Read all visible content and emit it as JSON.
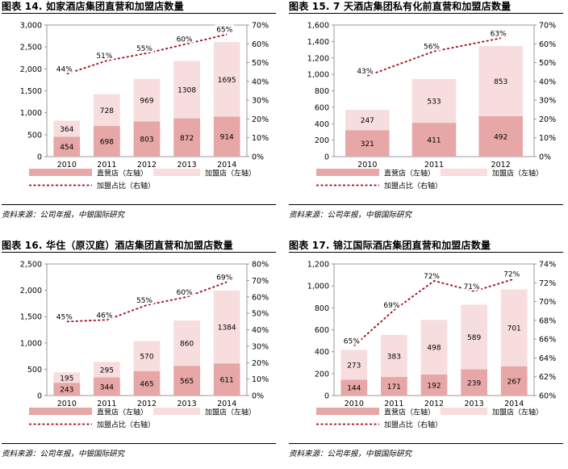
{
  "colors": {
    "direct": "#e6a7a6",
    "franchise": "#f7dddd",
    "ratio_line": "#a00a1c"
  },
  "legend_labels": {
    "direct": "直营店（左轴）",
    "franchise": "加盟店（左轴）",
    "ratio": "加盟占比（右轴）"
  },
  "source_note": "资料来源：公司年报，中银国际研究",
  "chart_data": [
    {
      "type": "bar",
      "title": "图表 14. 如家酒店集团直营和加盟店数量",
      "categories": [
        "2010",
        "2011",
        "2012",
        "2013",
        "2014"
      ],
      "ylim": [
        0,
        3000
      ],
      "left_ticks": [
        "0",
        "500",
        "1,000",
        "1,500",
        "2,000",
        "2,500",
        "3,000"
      ],
      "y2lim": [
        0,
        70
      ],
      "right_ticks": [
        "0%",
        "10%",
        "20%",
        "30%",
        "40%",
        "50%",
        "60%",
        "70%"
      ],
      "series": [
        {
          "name": "直营店（左轴）",
          "values": [
            454,
            698,
            803,
            872,
            914
          ]
        },
        {
          "name": "加盟店（左轴）",
          "values": [
            364,
            728,
            969,
            1308,
            1695
          ]
        }
      ],
      "line": {
        "name": "加盟占比（右轴）",
        "values": [
          44,
          51,
          55,
          60,
          65
        ],
        "labels": [
          "44%",
          "51%",
          "55%",
          "60%",
          "65%"
        ]
      }
    },
    {
      "type": "bar",
      "title": "图表 15. 7 天酒店集团私有化前直营和加盟店数量",
      "categories": [
        "2010",
        "2011",
        "2012"
      ],
      "ylim": [
        0,
        1600
      ],
      "left_ticks": [
        "0",
        "200",
        "400",
        "600",
        "800",
        "1,000",
        "1,200",
        "1,400",
        "1,600"
      ],
      "y2lim": [
        0,
        70
      ],
      "right_ticks": [
        "0%",
        "10%",
        "20%",
        "30%",
        "40%",
        "50%",
        "60%",
        "70%"
      ],
      "series": [
        {
          "name": "直营店（左轴）",
          "values": [
            321,
            411,
            492
          ]
        },
        {
          "name": "加盟店（左轴）",
          "values": [
            247,
            533,
            853
          ]
        }
      ],
      "line": {
        "name": "加盟占比（右轴）",
        "values": [
          43,
          56,
          63
        ],
        "labels": [
          "43%",
          "56%",
          "63%"
        ]
      }
    },
    {
      "type": "bar",
      "title": "图表 16. 华住（原汉庭）酒店集团直营和加盟店数量",
      "categories": [
        "2010",
        "2011",
        "2012",
        "2013",
        "2014"
      ],
      "ylim": [
        0,
        2500
      ],
      "left_ticks": [
        "0",
        "500",
        "1,000",
        "1,500",
        "2,000",
        "2,500"
      ],
      "y2lim": [
        0,
        80
      ],
      "right_ticks": [
        "0%",
        "10%",
        "20%",
        "30%",
        "40%",
        "50%",
        "60%",
        "70%",
        "80%"
      ],
      "series": [
        {
          "name": "直营店（左轴）",
          "values": [
            243,
            344,
            465,
            565,
            611
          ]
        },
        {
          "name": "加盟店（左轴）",
          "values": [
            195,
            295,
            570,
            860,
            1384
          ]
        }
      ],
      "line": {
        "name": "加盟占比（右轴）",
        "values": [
          45,
          46,
          55,
          60,
          69
        ],
        "labels": [
          "45%",
          "46%",
          "55%",
          "60%",
          "69%"
        ]
      }
    },
    {
      "type": "bar",
      "title": "图表 17. 锦江国际酒店集团直营和加盟店数量",
      "categories": [
        "2010",
        "2011",
        "2012",
        "2013",
        "2014"
      ],
      "ylim": [
        0,
        1200
      ],
      "left_ticks": [
        "0",
        "200",
        "400",
        "600",
        "800",
        "1,000",
        "1,200"
      ],
      "y2lim": [
        60,
        74
      ],
      "right_ticks": [
        "60%",
        "62%",
        "64%",
        "66%",
        "68%",
        "70%",
        "72%",
        "74%"
      ],
      "series": [
        {
          "name": "直营店（左轴）",
          "values": [
            144,
            171,
            192,
            239,
            267
          ]
        },
        {
          "name": "加盟店（左轴）",
          "values": [
            273,
            383,
            498,
            589,
            701
          ]
        }
      ],
      "line": {
        "name": "加盟占比（右轴）",
        "values": [
          65.3,
          69.1,
          72.2,
          71.1,
          72.4
        ],
        "labels": [
          "65%",
          "69%",
          "72%",
          "71%",
          "72%"
        ]
      }
    }
  ]
}
